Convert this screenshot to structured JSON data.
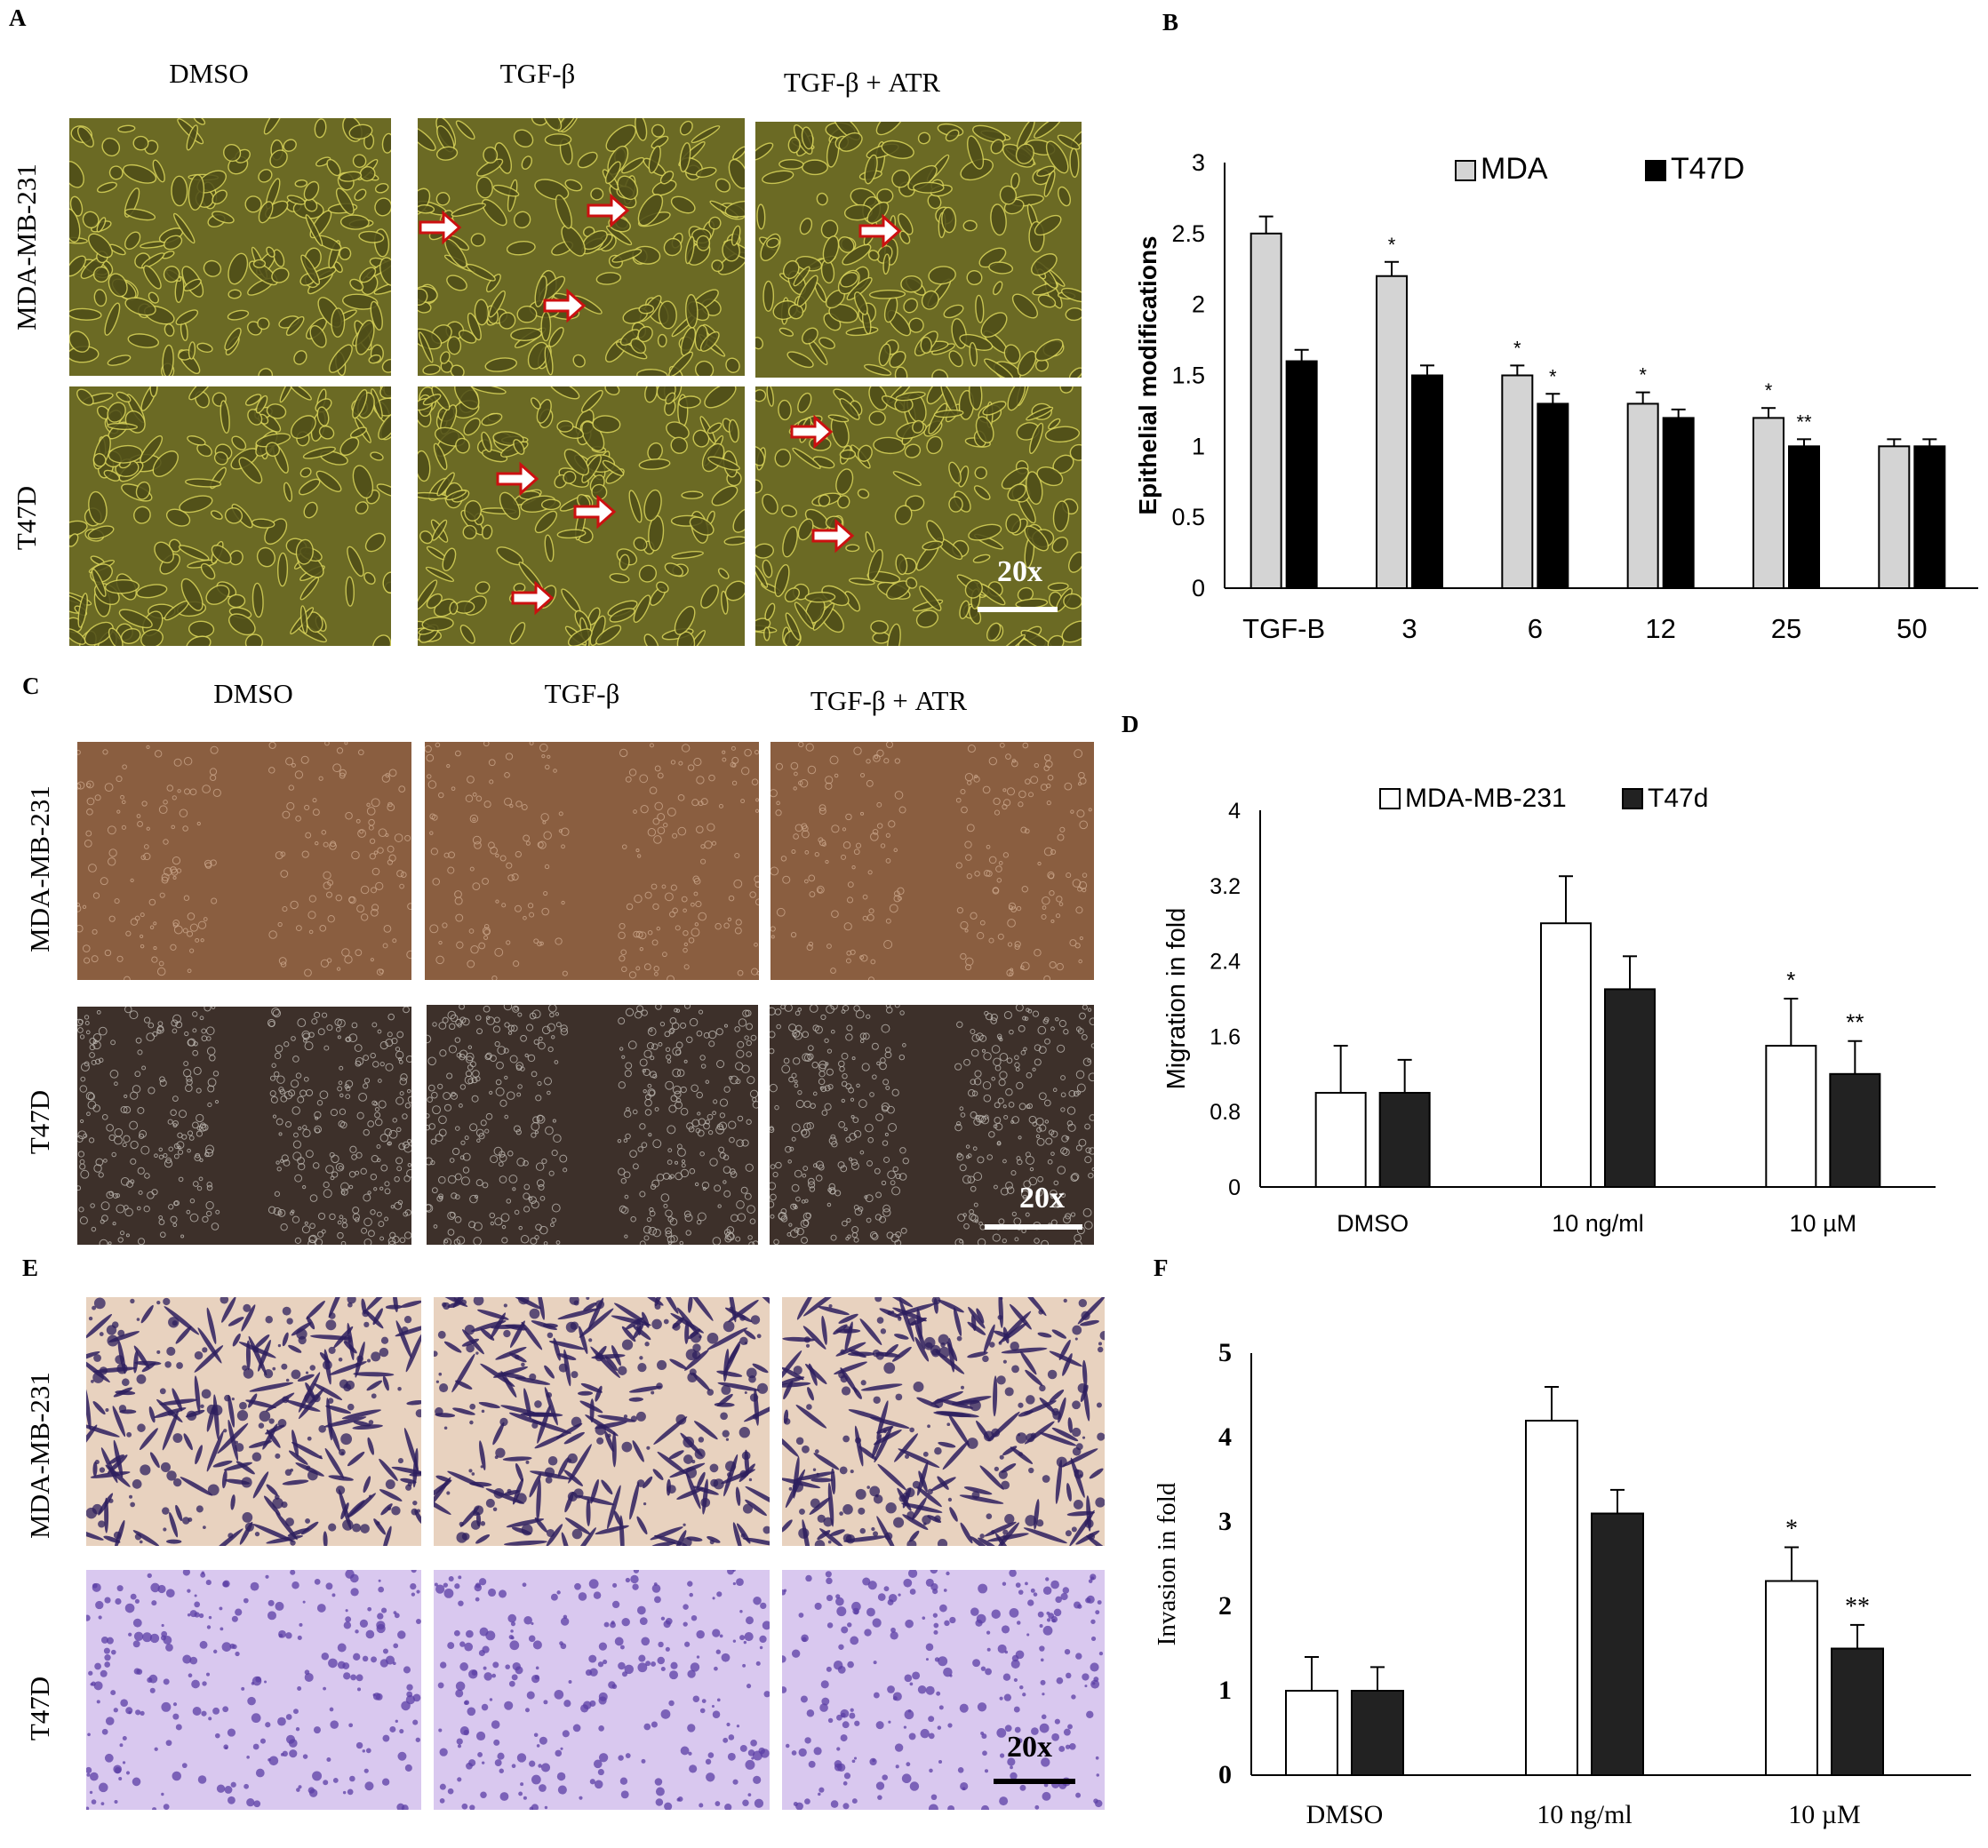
{
  "panels": {
    "A": {
      "letter": "A",
      "columns": [
        "DMSO",
        "TGF-β",
        "TGF-β + ATR"
      ],
      "rows": [
        "MDA-MB-231",
        "T47D"
      ],
      "scale_label": "20x"
    },
    "C": {
      "letter": "C",
      "columns": [
        "DMSO",
        "TGF-β",
        "TGF-β + ATR"
      ],
      "rows": [
        "MDA-MB-231",
        "T47D"
      ],
      "scale_label": "20x"
    },
    "E": {
      "letter": "E",
      "rows": [
        "MDA-MB-231",
        "T47D"
      ],
      "scale_label": "20x"
    }
  },
  "colors": {
    "phase_contrast": "#6b6a24",
    "scratch_mda": "#8a5e40",
    "scratch_t47d": "#3d302a",
    "transwell_bg_mda": "#e8d2bf",
    "transwell_bg_t47d": "#d9c8ef",
    "crystal_violet": "#2d1f5e",
    "arrow_fill": "#ffffff",
    "arrow_stroke": "#cc1010",
    "bar_light_gray": "#d4d4d4",
    "bar_black": "#000000",
    "bar_white": "#ffffff",
    "bar_dark": "#222222"
  },
  "chart_data": [
    {
      "panel": "B",
      "type": "bar",
      "title": "",
      "ylabel": "Epithelial modifications",
      "xlabel": "",
      "categories": [
        "TGF-B",
        "3",
        "6",
        "12",
        "25",
        "50"
      ],
      "ylim": [
        0,
        3
      ],
      "yticks": [
        "0",
        "0.5",
        "1",
        "1.5",
        "2",
        "2.5",
        "3"
      ],
      "legend": "top",
      "series": [
        {
          "name": "MDA",
          "color": "#d4d4d4",
          "values": [
            2.5,
            2.2,
            1.5,
            1.3,
            1.2,
            1.0
          ],
          "errors": [
            0.12,
            0.1,
            0.07,
            0.08,
            0.07,
            0.05
          ]
        },
        {
          "name": "T47D",
          "color": "#000000",
          "values": [
            1.6,
            1.5,
            1.3,
            1.2,
            1.0,
            1.0
          ],
          "errors": [
            0.08,
            0.07,
            0.07,
            0.06,
            0.05,
            0.05
          ]
        }
      ],
      "annotations": [
        {
          "category": "3",
          "series": 0,
          "text": "*"
        },
        {
          "category": "6",
          "series": 0,
          "text": "*"
        },
        {
          "category": "6",
          "series": 1,
          "text": "*"
        },
        {
          "category": "12",
          "series": 0,
          "text": "*"
        },
        {
          "category": "25",
          "series": 0,
          "text": "*"
        },
        {
          "category": "25",
          "series": 1,
          "text": "**"
        }
      ]
    },
    {
      "panel": "D",
      "type": "bar",
      "title": "",
      "ylabel": "Migration in fold",
      "xlabel": "",
      "categories": [
        "DMSO",
        "10 ng/ml",
        "10 µM"
      ],
      "ylim": [
        0,
        4
      ],
      "yticks": [
        "0",
        "0.8",
        "1.6",
        "2.4",
        "3.2",
        "4"
      ],
      "legend": "top",
      "series": [
        {
          "name": "MDA-MB-231",
          "color": "#ffffff",
          "values": [
            1.0,
            2.8,
            1.5
          ],
          "errors": [
            0.5,
            0.5,
            0.5
          ]
        },
        {
          "name": "T47d",
          "color": "#222222",
          "values": [
            1.0,
            2.1,
            1.2
          ],
          "errors": [
            0.35,
            0.35,
            0.35
          ]
        }
      ],
      "annotations": [
        {
          "category": "10 µM",
          "series": 0,
          "text": "*"
        },
        {
          "category": "10 µM",
          "series": 1,
          "text": "**"
        }
      ]
    },
    {
      "panel": "F",
      "type": "bar",
      "title": "",
      "ylabel": "Invasion in fold",
      "xlabel": "",
      "categories": [
        "DMSO",
        "10 ng/ml",
        "10  µM"
      ],
      "ylim": [
        0,
        5
      ],
      "yticks": [
        "0",
        "1",
        "2",
        "3",
        "4",
        "5"
      ],
      "legend": "none",
      "series": [
        {
          "name": "",
          "color": "#ffffff",
          "values": [
            1.0,
            4.2,
            2.3
          ],
          "errors": [
            0.4,
            0.4,
            0.4
          ]
        },
        {
          "name": "",
          "color": "#222222",
          "values": [
            1.0,
            3.1,
            1.5
          ],
          "errors": [
            0.28,
            0.28,
            0.28
          ]
        }
      ],
      "annotations": [
        {
          "category": "10  µM",
          "series": 0,
          "text": "*"
        },
        {
          "category": "10  µM",
          "series": 1,
          "text": "**"
        }
      ]
    }
  ],
  "chart_letters": {
    "B": "B",
    "D": "D",
    "F": "F"
  }
}
